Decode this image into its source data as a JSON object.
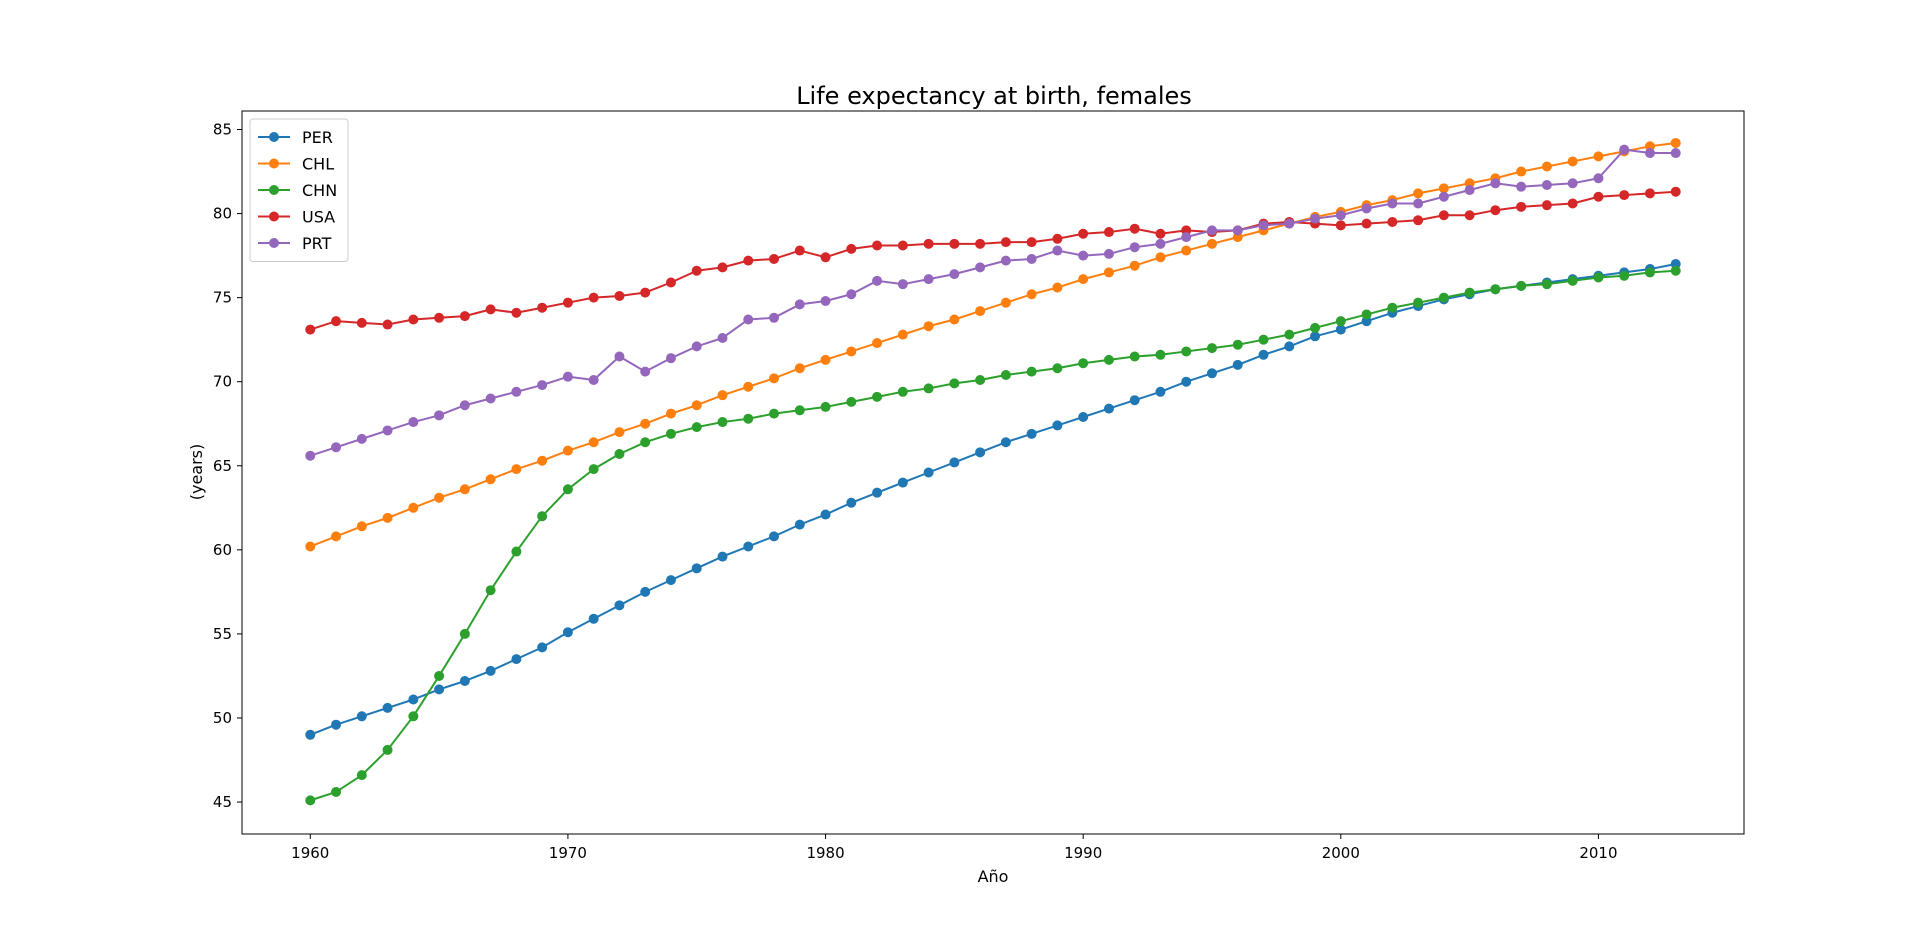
{
  "chart_data": {
    "type": "line",
    "title": "Life expectancy at birth, females",
    "xlabel": "Año",
    "ylabel": "(years)",
    "xlim": [
      1957.35,
      2015.65
    ],
    "ylim": [
      43.1,
      86.1
    ],
    "xticks": [
      1960,
      1970,
      1980,
      1990,
      2000,
      2010
    ],
    "yticks": [
      45,
      50,
      55,
      60,
      65,
      70,
      75,
      80,
      85
    ],
    "grid": false,
    "legend_position": "top-left",
    "x": [
      1960,
      1961,
      1962,
      1963,
      1964,
      1965,
      1966,
      1967,
      1968,
      1969,
      1970,
      1971,
      1972,
      1973,
      1974,
      1975,
      1976,
      1977,
      1978,
      1979,
      1980,
      1981,
      1982,
      1983,
      1984,
      1985,
      1986,
      1987,
      1988,
      1989,
      1990,
      1991,
      1992,
      1993,
      1994,
      1995,
      1996,
      1997,
      1998,
      1999,
      2000,
      2001,
      2002,
      2003,
      2004,
      2005,
      2006,
      2007,
      2008,
      2009,
      2010,
      2011,
      2012,
      2013
    ],
    "series": [
      {
        "name": "PER",
        "color": "#1f77b4",
        "values": [
          49.0,
          49.6,
          50.1,
          50.6,
          51.1,
          51.7,
          52.2,
          52.8,
          53.5,
          54.2,
          55.1,
          55.9,
          56.7,
          57.5,
          58.2,
          58.9,
          59.6,
          60.2,
          60.8,
          61.5,
          62.1,
          62.8,
          63.4,
          64.0,
          64.6,
          65.2,
          65.8,
          66.4,
          66.9,
          67.4,
          67.9,
          68.4,
          68.9,
          69.4,
          70.0,
          70.5,
          71.0,
          71.6,
          72.1,
          72.7,
          73.1,
          73.6,
          74.1,
          74.5,
          74.9,
          75.2,
          75.5,
          75.7,
          75.9,
          76.1,
          76.3,
          76.5,
          76.7,
          77.0
        ]
      },
      {
        "name": "CHL",
        "color": "#ff7f0e",
        "values": [
          60.2,
          60.8,
          61.4,
          61.9,
          62.5,
          63.1,
          63.6,
          64.2,
          64.8,
          65.3,
          65.9,
          66.4,
          67.0,
          67.5,
          68.1,
          68.6,
          69.2,
          69.7,
          70.2,
          70.8,
          71.3,
          71.8,
          72.3,
          72.8,
          73.3,
          73.7,
          74.2,
          74.7,
          75.2,
          75.6,
          76.1,
          76.5,
          76.9,
          77.4,
          77.8,
          78.2,
          78.6,
          79.0,
          79.4,
          79.8,
          80.1,
          80.5,
          80.8,
          81.2,
          81.5,
          81.8,
          82.1,
          82.5,
          82.8,
          83.1,
          83.4,
          83.7,
          84.0,
          84.2
        ]
      },
      {
        "name": "CHN",
        "color": "#2ca02c",
        "values": [
          45.1,
          45.6,
          46.6,
          48.1,
          50.1,
          52.5,
          55.0,
          57.6,
          59.9,
          62.0,
          63.6,
          64.8,
          65.7,
          66.4,
          66.9,
          67.3,
          67.6,
          67.8,
          68.1,
          68.3,
          68.5,
          68.8,
          69.1,
          69.4,
          69.6,
          69.9,
          70.1,
          70.4,
          70.6,
          70.8,
          71.1,
          71.3,
          71.5,
          71.6,
          71.8,
          72.0,
          72.2,
          72.5,
          72.8,
          73.2,
          73.6,
          74.0,
          74.4,
          74.7,
          75.0,
          75.3,
          75.5,
          75.7,
          75.8,
          76.0,
          76.2,
          76.3,
          76.5,
          76.6
        ]
      },
      {
        "name": "USA",
        "color": "#d62728",
        "values": [
          73.1,
          73.6,
          73.5,
          73.4,
          73.7,
          73.8,
          73.9,
          74.3,
          74.1,
          74.4,
          74.7,
          75.0,
          75.1,
          75.3,
          75.9,
          76.6,
          76.8,
          77.2,
          77.3,
          77.8,
          77.4,
          77.9,
          78.1,
          78.1,
          78.2,
          78.2,
          78.2,
          78.3,
          78.3,
          78.5,
          78.8,
          78.9,
          79.1,
          78.8,
          79.0,
          78.9,
          79.0,
          79.4,
          79.5,
          79.4,
          79.3,
          79.4,
          79.5,
          79.6,
          79.9,
          79.9,
          80.2,
          80.4,
          80.5,
          80.6,
          81.0,
          81.1,
          81.2,
          81.3
        ]
      },
      {
        "name": "PRT",
        "color": "#9467bd",
        "values": [
          65.6,
          66.1,
          66.6,
          67.1,
          67.6,
          68.0,
          68.6,
          69.0,
          69.4,
          69.8,
          70.3,
          70.1,
          71.5,
          70.6,
          71.4,
          72.1,
          72.6,
          73.7,
          73.8,
          74.6,
          74.8,
          75.2,
          76.0,
          75.8,
          76.1,
          76.4,
          76.8,
          77.2,
          77.3,
          77.8,
          77.5,
          77.6,
          78.0,
          78.2,
          78.6,
          79.0,
          79.0,
          79.3,
          79.4,
          79.7,
          79.9,
          80.3,
          80.6,
          80.6,
          81.0,
          81.4,
          81.8,
          81.6,
          81.7,
          81.8,
          82.1,
          83.8,
          83.6,
          83.6
        ]
      }
    ]
  }
}
